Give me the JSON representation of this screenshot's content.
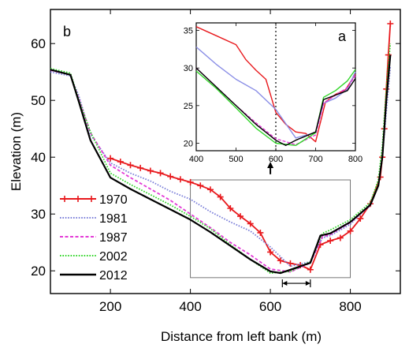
{
  "chart_data": [
    {
      "panel": "b",
      "type": "line",
      "xlabel": "Distance from left bank (m)",
      "ylabel": "Elevation (m)",
      "xlim": [
        50,
        925
      ],
      "ylim": [
        16,
        66
      ],
      "xticks": [
        200,
        400,
        600,
        800
      ],
      "yticks": [
        20,
        30,
        40,
        50,
        60
      ],
      "legend_position": "bottom-left",
      "series": [
        {
          "name": "1970",
          "color": "#e8191d",
          "style": "solid-plus",
          "x": [
            200,
            225,
            250,
            275,
            300,
            325,
            350,
            375,
            400,
            425,
            450,
            475,
            500,
            525,
            550,
            575,
            600,
            625,
            650,
            675,
            700,
            725,
            750,
            775,
            800,
            825,
            850,
            875,
            880,
            885,
            890,
            895,
            900
          ],
          "y": [
            39.8,
            39.2,
            38.6,
            38.1,
            37.6,
            37.2,
            36.6,
            36.1,
            35.6,
            35.0,
            34.3,
            33.0,
            31.0,
            29.6,
            28.3,
            26.7,
            23.3,
            21.8,
            21.3,
            21.0,
            20.2,
            24.6,
            25.3,
            25.8,
            27.0,
            29.2,
            31.8,
            36.5,
            40.0,
            45.0,
            52.0,
            58.0,
            63.5
          ]
        },
        {
          "name": "1981",
          "color": "#7b7fd9",
          "style": "dotted",
          "x": [
            50,
            100,
            120,
            150,
            200,
            250,
            300,
            350,
            400,
            450,
            500,
            550,
            600,
            650,
            700,
            730,
            750,
            800,
            850,
            870,
            880,
            890,
            900
          ],
          "y": [
            55.0,
            54.3,
            51.0,
            44.0,
            39.0,
            37.2,
            35.8,
            34.0,
            32.6,
            30.4,
            28.6,
            27.0,
            24.2,
            20.8,
            21.6,
            25.8,
            26.2,
            28.2,
            31.8,
            35.0,
            40.0,
            48.0,
            56.0
          ]
        },
        {
          "name": "1987",
          "color": "#e33ad6",
          "style": "dashed",
          "x": [
            50,
            100,
            120,
            150,
            200,
            250,
            300,
            350,
            400,
            450,
            500,
            550,
            600,
            650,
            700,
            730,
            750,
            800,
            850,
            870,
            880,
            890,
            900
          ],
          "y": [
            55.3,
            54.5,
            50.5,
            44.3,
            38.6,
            36.4,
            34.4,
            32.4,
            30.0,
            27.6,
            25.0,
            22.8,
            20.3,
            19.8,
            21.4,
            26.0,
            26.4,
            28.5,
            31.5,
            35.0,
            40.5,
            50.0,
            58.0
          ]
        },
        {
          "name": "2002",
          "color": "#32d62a",
          "style": "dotted",
          "x": [
            50,
            100,
            120,
            150,
            200,
            250,
            300,
            350,
            400,
            450,
            500,
            550,
            600,
            650,
            700,
            730,
            750,
            800,
            850,
            870,
            880,
            890,
            900
          ],
          "y": [
            55.6,
            54.8,
            50.3,
            44.5,
            37.2,
            35.2,
            33.4,
            31.6,
            29.6,
            27.4,
            24.6,
            22.0,
            19.6,
            19.9,
            21.6,
            26.6,
            27.2,
            29.0,
            32.0,
            36.0,
            42.0,
            52.0,
            60.0
          ]
        },
        {
          "name": "2012",
          "color": "#000000",
          "style": "solid",
          "x": [
            50,
            100,
            120,
            150,
            200,
            250,
            300,
            350,
            400,
            450,
            500,
            550,
            600,
            625,
            650,
            700,
            725,
            750,
            800,
            850,
            870,
            880,
            890,
            900
          ],
          "y": [
            55.4,
            54.5,
            50.0,
            43.0,
            36.4,
            34.4,
            32.6,
            30.8,
            29.0,
            26.8,
            24.4,
            22.0,
            19.9,
            19.6,
            20.2,
            21.4,
            26.2,
            26.6,
            28.6,
            31.6,
            35.0,
            40.0,
            50.0,
            58.0
          ]
        }
      ],
      "annotations": [
        {
          "type": "rectangle",
          "x_range": [
            400,
            800
          ],
          "y_range": [
            18.8,
            36.0
          ]
        },
        {
          "type": "span-arrow",
          "x_range": [
            630,
            700
          ],
          "y": 17.8
        },
        {
          "type": "arrow-up",
          "x": 600,
          "y_from": 37.0,
          "y_to": 39.2
        }
      ]
    },
    {
      "panel": "a",
      "type": "line",
      "xlim": [
        400,
        800
      ],
      "ylim": [
        19,
        36
      ],
      "xticks": [
        400,
        500,
        600,
        700,
        800
      ],
      "yticks": [
        20,
        25,
        30,
        35
      ],
      "vertical_marker": 600,
      "series": [
        {
          "name": "1970",
          "color": "#e8191d",
          "x": [
            400,
            450,
            500,
            525,
            550,
            575,
            600,
            625,
            650,
            675,
            700,
            725,
            750,
            775,
            800
          ],
          "y": [
            35.5,
            34.3,
            33.1,
            31.1,
            29.7,
            28.5,
            24.1,
            22.5,
            21.5,
            21.3,
            20.2,
            25.5,
            26.5,
            27.1,
            29.2
          ]
        },
        {
          "name": "1981",
          "color": "#8a8ee6",
          "x": [
            400,
            450,
            500,
            550,
            600,
            650,
            700,
            720,
            750,
            780,
            800
          ],
          "y": [
            32.8,
            30.5,
            28.5,
            27.0,
            24.5,
            20.7,
            21.4,
            25.3,
            26.0,
            27.2,
            29.5
          ]
        },
        {
          "name": "1987",
          "color": "#e33ad6",
          "x": [
            400,
            450,
            500,
            550,
            600,
            650,
            700,
            720,
            750,
            780,
            800
          ],
          "y": [
            30.0,
            27.5,
            25.0,
            22.7,
            20.6,
            19.8,
            21.1,
            25.3,
            26.4,
            27.4,
            29.0
          ]
        },
        {
          "name": "2002",
          "color": "#32d62a",
          "x": [
            400,
            450,
            500,
            550,
            600,
            650,
            700,
            720,
            750,
            780,
            800
          ],
          "y": [
            29.6,
            27.3,
            24.7,
            22.0,
            20.0,
            19.7,
            21.4,
            26.1,
            27.0,
            28.3,
            29.8
          ]
        },
        {
          "name": "2012",
          "color": "#000000",
          "x": [
            400,
            450,
            500,
            550,
            600,
            625,
            650,
            700,
            720,
            750,
            780,
            800
          ],
          "y": [
            30.0,
            27.5,
            25.0,
            22.5,
            20.4,
            19.7,
            20.4,
            21.5,
            25.8,
            26.4,
            27.0,
            28.6
          ]
        }
      ]
    }
  ],
  "labels": {
    "panel_b": "b",
    "panel_a": "a"
  }
}
